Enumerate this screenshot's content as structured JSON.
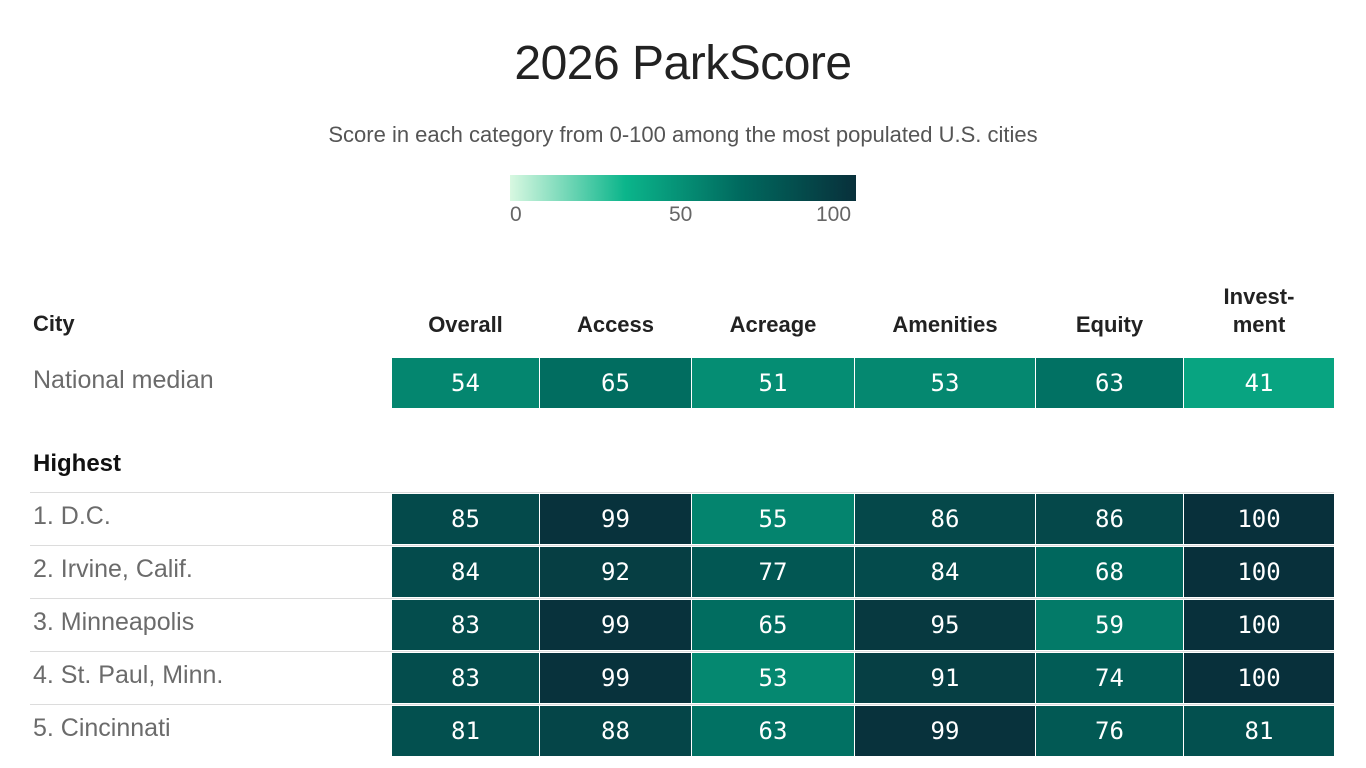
{
  "chart_data": {
    "type": "heatmap",
    "title": "2026 ParkScore",
    "subtitle": "Score in each category from 0-100 among the most populated U.S. cities",
    "legend": {
      "ticks": [
        "0",
        "50",
        "100"
      ],
      "range": [
        0,
        100
      ],
      "colors": [
        "#d8f8e1",
        "#0bb58b",
        "#00695e",
        "#08303b"
      ]
    },
    "row_header": "City",
    "columns": [
      "Overall",
      "Access",
      "Acreage",
      "Amenities",
      "Equity",
      "Invest- ment"
    ],
    "median": {
      "label": "National median",
      "values": [
        54,
        65,
        51,
        53,
        63,
        41
      ]
    },
    "section_label": "Highest",
    "rows": [
      {
        "label": "1. D.C.",
        "values": [
          85,
          99,
          55,
          86,
          86,
          100
        ]
      },
      {
        "label": "2. Irvine, Calif.",
        "values": [
          84,
          92,
          77,
          84,
          68,
          100
        ]
      },
      {
        "label": "3. Minneapolis",
        "values": [
          83,
          99,
          65,
          95,
          59,
          100
        ]
      },
      {
        "label": "4. St. Paul, Minn.",
        "values": [
          83,
          99,
          53,
          91,
          74,
          100
        ]
      },
      {
        "label": "5. Cincinnati",
        "values": [
          81,
          88,
          63,
          99,
          76,
          81
        ]
      }
    ]
  }
}
